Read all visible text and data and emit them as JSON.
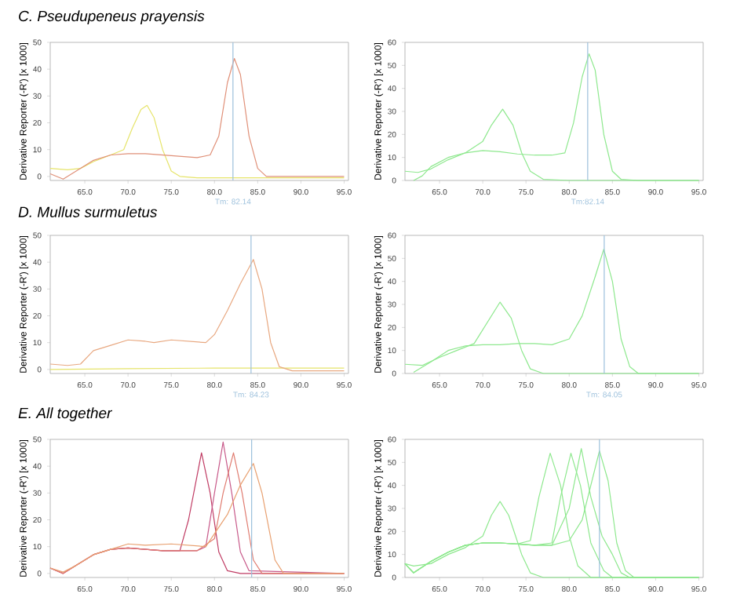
{
  "chart_data": [
    {
      "type": "line",
      "title": "C. Pseudupeneus prayensis",
      "ylabel": "Derivative Reporter (-R') [x 1000]",
      "xlim": [
        61,
        95.5
      ],
      "ylim": [
        -1.5,
        50
      ],
      "xticks": [
        {
          "value": 65,
          "label": "65.0"
        },
        {
          "value": 70,
          "label": "70.0"
        },
        {
          "value": 75,
          "label": "75.0"
        },
        {
          "value": 80,
          "label": "80.0"
        },
        {
          "value": 85,
          "label": "85.0"
        },
        {
          "value": 90,
          "label": "90.0"
        },
        {
          "value": 95,
          "label": "95.0"
        }
      ],
      "yticks": [
        0,
        10,
        20,
        30,
        40,
        50
      ],
      "ref_lines": [
        {
          "axis": "x",
          "value": 82.14,
          "label": "Tm: 82.14",
          "color": "#9cc0dc"
        }
      ],
      "series": [
        {
          "color": "#e6e46a",
          "x": [
            61,
            63,
            64.5,
            66,
            68,
            69.5,
            70.5,
            71.5,
            72.2,
            73,
            74,
            75,
            76,
            78,
            88,
            95
          ],
          "values": [
            3,
            2.5,
            3,
            5.5,
            8,
            10,
            18,
            25,
            26.5,
            22,
            10,
            2,
            0,
            -0.5,
            -0.5,
            -0.5
          ]
        },
        {
          "color": "#e09078",
          "x": [
            61,
            62.5,
            64,
            66,
            68,
            70,
            72,
            74,
            76,
            78,
            79.5,
            80.5,
            81.5,
            82.3,
            83,
            84,
            85,
            86,
            88,
            95
          ],
          "values": [
            1,
            -1,
            2,
            6,
            8,
            8.5,
            8.5,
            8,
            7.5,
            7,
            8,
            15,
            35,
            44,
            38,
            15,
            3,
            0,
            0,
            0
          ]
        }
      ]
    },
    {
      "type": "line",
      "ylabel": "Derivative Reporter (-R') [x 1000]",
      "xlim": [
        61,
        95.5
      ],
      "ylim": [
        0,
        60
      ],
      "xticks": [
        {
          "value": 65,
          "label": "65.0"
        },
        {
          "value": 70,
          "label": "70.0"
        },
        {
          "value": 75,
          "label": "75.0"
        },
        {
          "value": 80,
          "label": "80.0"
        },
        {
          "value": 85,
          "label": "85.0"
        },
        {
          "value": 90,
          "label": "90.0"
        },
        {
          "value": 95,
          "label": "95.0"
        }
      ],
      "yticks": [
        0,
        10,
        20,
        30,
        40,
        50,
        60
      ],
      "ref_lines": [
        {
          "axis": "x",
          "value": 82.14,
          "label": "Tm:82.14",
          "color": "#9cc0dc"
        }
      ],
      "series": [
        {
          "color": "#8ee88e",
          "x": [
            61,
            62.5,
            64,
            66,
            68,
            70,
            71,
            72.3,
            73.5,
            74.5,
            75.5,
            77,
            80,
            95
          ],
          "values": [
            4,
            3.5,
            5,
            9,
            12,
            17,
            24,
            31,
            24,
            12,
            4,
            0.5,
            0,
            0
          ]
        },
        {
          "color": "#8ee88e",
          "x": [
            62,
            63,
            64,
            66,
            68,
            70,
            72,
            74,
            76,
            78,
            79.5,
            80.5,
            81.5,
            82.3,
            83,
            84,
            85,
            86,
            88,
            95
          ],
          "values": [
            0,
            2,
            6,
            10,
            12,
            13,
            12.5,
            11.5,
            11,
            11,
            12,
            25,
            45,
            55,
            48,
            20,
            4,
            0.5,
            0,
            0
          ]
        }
      ]
    },
    {
      "type": "line",
      "title": "D. Mullus surmuletus",
      "ylabel": "Derivative Reporter (-R') [x 1000]",
      "xlim": [
        61,
        95.5
      ],
      "ylim": [
        -1.5,
        50
      ],
      "xticks": [
        {
          "value": 65,
          "label": "65.0"
        },
        {
          "value": 70,
          "label": "70.0"
        },
        {
          "value": 75,
          "label": "75.0"
        },
        {
          "value": 80,
          "label": "80.0"
        },
        {
          "value": 85,
          "label": "85.0"
        },
        {
          "value": 90,
          "label": "90.0"
        },
        {
          "value": 95,
          "label": "95.0"
        }
      ],
      "yticks": [
        0,
        10,
        20,
        30,
        40,
        50
      ],
      "ref_lines": [
        {
          "axis": "x",
          "value": 84.23,
          "label": "Tm: 84.23",
          "color": "#9cc0dc"
        }
      ],
      "series": [
        {
          "color": "#e6e46a",
          "x": [
            61,
            70,
            80,
            95
          ],
          "values": [
            0,
            0.3,
            0.5,
            0.5
          ]
        },
        {
          "color": "#e8a880",
          "x": [
            61,
            63,
            64.5,
            66,
            68,
            70,
            72,
            73,
            75,
            77,
            79,
            80,
            81.5,
            83,
            84.5,
            85.5,
            86.5,
            87.5,
            89,
            95
          ],
          "values": [
            2,
            1.5,
            2,
            7,
            9,
            11,
            10.5,
            10,
            11,
            10.5,
            10,
            13,
            22,
            32,
            41,
            30,
            10,
            1,
            -0.5,
            -0.5
          ]
        }
      ]
    },
    {
      "type": "line",
      "ylabel": "Derivative Reporter (-R') [x 1000]",
      "xlim": [
        61,
        95.5
      ],
      "ylim": [
        0,
        60
      ],
      "xticks": [
        {
          "value": 65,
          "label": "65.0"
        },
        {
          "value": 70,
          "label": "70.0"
        },
        {
          "value": 75,
          "label": "75.0"
        },
        {
          "value": 80,
          "label": "80.0"
        },
        {
          "value": 85,
          "label": "85.0"
        },
        {
          "value": 90,
          "label": "90.0"
        },
        {
          "value": 95,
          "label": "95.0"
        }
      ],
      "yticks": [
        0,
        10,
        20,
        30,
        40,
        50,
        60
      ],
      "ref_lines": [
        {
          "axis": "x",
          "value": 84.05,
          "label": "Tm: 84.05",
          "color": "#9cc0dc"
        }
      ],
      "series": [
        {
          "color": "#8ee88e",
          "x": [
            61,
            63,
            65,
            67,
            69,
            70.5,
            72,
            73.3,
            74.5,
            75.5,
            77,
            95
          ],
          "values": [
            4,
            3.5,
            7,
            10,
            13,
            22,
            31,
            24,
            10,
            2,
            0,
            0
          ]
        },
        {
          "color": "#8ee88e",
          "x": [
            62,
            64,
            66,
            68,
            70,
            72,
            74,
            76,
            78,
            80,
            81.5,
            83,
            84,
            85,
            86,
            87,
            88,
            95
          ],
          "values": [
            0.5,
            5,
            10,
            12,
            12.5,
            12.5,
            13,
            13,
            12.5,
            15,
            25,
            42,
            54,
            40,
            15,
            3,
            0,
            0
          ]
        }
      ]
    },
    {
      "type": "line",
      "title": "E. All together",
      "ylabel": "Derivative Reporter (-R') [x 1000]",
      "xlim": [
        61,
        95.5
      ],
      "ylim": [
        -1.5,
        50
      ],
      "xticks": [
        {
          "value": 65,
          "label": "65.0"
        },
        {
          "value": 70,
          "label": "70.0"
        },
        {
          "value": 75,
          "label": "75.0"
        },
        {
          "value": 80,
          "label": "80.0"
        },
        {
          "value": 85,
          "label": "85.0"
        },
        {
          "value": 90,
          "label": "90.0"
        },
        {
          "value": 95,
          "label": "95.0"
        }
      ],
      "yticks": [
        0,
        10,
        20,
        30,
        40,
        50
      ],
      "ref_lines": [
        {
          "axis": "x",
          "value": 84.3,
          "color": "#9cc0dc"
        }
      ],
      "series": [
        {
          "color": "#c03c64",
          "x": [
            61,
            62.5,
            64,
            66,
            68,
            70,
            72,
            74,
            76,
            77,
            78.5,
            79.5,
            80.5,
            81.5,
            83,
            95
          ],
          "values": [
            2,
            0,
            3,
            7,
            9,
            9.5,
            9,
            8.5,
            8.5,
            20,
            45,
            30,
            8,
            1,
            0,
            0
          ]
        },
        {
          "color": "#c85a8a",
          "x": [
            61,
            62.5,
            64,
            66,
            68,
            70,
            72,
            74,
            76,
            78,
            79,
            80,
            81,
            82,
            83,
            84,
            95
          ],
          "values": [
            2,
            0,
            3,
            7,
            9,
            9.5,
            9,
            8.5,
            8.5,
            8.5,
            10,
            30,
            49,
            30,
            8,
            1,
            0
          ]
        },
        {
          "color": "#e07c70",
          "x": [
            61,
            62.5,
            64,
            66,
            68,
            70,
            72,
            74,
            76,
            78,
            80,
            81,
            82.2,
            83.2,
            84.5,
            85.5,
            95
          ],
          "values": [
            2,
            0,
            3,
            7,
            9,
            9.5,
            9,
            8.5,
            8.5,
            8.5,
            13,
            30,
            45,
            30,
            5,
            0,
            0
          ]
        },
        {
          "color": "#e8a070",
          "x": [
            61,
            62.5,
            64,
            66,
            68,
            70,
            72,
            75,
            77,
            79,
            81.5,
            83,
            84.5,
            85.5,
            87,
            88,
            95
          ],
          "values": [
            2,
            0.5,
            3,
            7,
            9,
            11,
            10.5,
            11,
            10.5,
            10,
            22,
            33,
            41,
            30,
            5,
            0,
            0
          ]
        }
      ]
    },
    {
      "type": "line",
      "ylabel": "Derivative Reporter (-R') [x 1000]",
      "xlim": [
        61,
        95.5
      ],
      "ylim": [
        0,
        60
      ],
      "xticks": [
        {
          "value": 65,
          "label": "65.0"
        },
        {
          "value": 70,
          "label": "70.0"
        },
        {
          "value": 75,
          "label": "75.0"
        },
        {
          "value": 80,
          "label": "80.0"
        },
        {
          "value": 85,
          "label": "85.0"
        },
        {
          "value": 90,
          "label": "90.0"
        },
        {
          "value": 95,
          "label": "95.0"
        }
      ],
      "yticks": [
        0,
        10,
        20,
        30,
        40,
        50,
        60
      ],
      "ref_lines": [
        {
          "axis": "x",
          "value": 83.5,
          "color": "#9cc0dc"
        }
      ],
      "series": [
        {
          "color": "#8ee88e",
          "x": [
            61,
            62,
            64,
            66,
            68,
            70,
            71,
            72,
            73,
            74.5,
            75.5,
            77,
            80,
            95
          ],
          "values": [
            6,
            5,
            6,
            10,
            13,
            18,
            27,
            33,
            27,
            10,
            2,
            0,
            0,
            0
          ]
        },
        {
          "color": "#8ee88e",
          "x": [
            61,
            62,
            64,
            66,
            68,
            70,
            72,
            74,
            75.5,
            76.5,
            77.8,
            79,
            80,
            81,
            82.5,
            84,
            95
          ],
          "values": [
            6,
            2,
            7,
            11,
            14,
            15,
            15,
            14.5,
            16,
            35,
            54,
            40,
            18,
            5,
            0,
            0,
            0
          ]
        },
        {
          "color": "#8ee88e",
          "x": [
            61,
            62,
            64,
            66,
            68,
            70,
            72,
            74,
            76,
            78,
            79,
            80.2,
            81.3,
            82.5,
            84,
            85,
            95
          ],
          "values": [
            6,
            2,
            7,
            11,
            14,
            15,
            15,
            14.5,
            14,
            15,
            35,
            54,
            40,
            15,
            3,
            0,
            0
          ]
        },
        {
          "color": "#8ee88e",
          "x": [
            61,
            62,
            64,
            66,
            68,
            70,
            72,
            74,
            76,
            78,
            80,
            81.4,
            82.5,
            83.8,
            85,
            86,
            87,
            95
          ],
          "values": [
            6,
            2,
            7,
            11,
            14,
            15,
            15,
            14.5,
            14,
            14,
            30,
            56,
            35,
            18,
            10,
            2,
            0,
            0
          ]
        },
        {
          "color": "#8ee88e",
          "x": [
            61,
            62,
            64,
            66,
            68,
            70,
            72,
            74,
            76,
            78,
            80,
            81.5,
            82.5,
            83.5,
            84.5,
            85.5,
            86.5,
            87.5,
            95
          ],
          "values": [
            6,
            2,
            7,
            11,
            14,
            15,
            15,
            14.5,
            14,
            14,
            16,
            25,
            40,
            55,
            42,
            15,
            3,
            0,
            0
          ]
        }
      ]
    }
  ]
}
